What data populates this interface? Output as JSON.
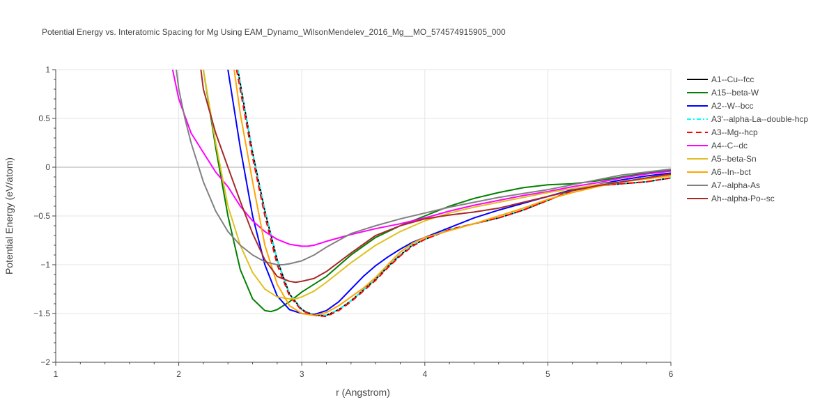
{
  "chart_data": {
    "type": "line",
    "title": "Potential Energy vs. Interatomic Spacing for Mg Using EAM_Dynamo_WilsonMendelev_2016_Mg__MO_574574915905_000",
    "xlabel": "r (Angstrom)",
    "ylabel": "Potential Energy (eV/atom)",
    "xlim": [
      1,
      6
    ],
    "ylim": [
      -2,
      1
    ],
    "xticks": [
      "1",
      "2",
      "3",
      "4",
      "5",
      "6"
    ],
    "yticks": [
      "1",
      "0.5",
      "0",
      "−0.5",
      "−1",
      "−1.5",
      "−2"
    ],
    "grid": true,
    "legend_position": "top-right",
    "series": [
      {
        "name": "A1--Cu--fcc",
        "color": "#000000",
        "dash": "solid",
        "x": [
          2.48,
          2.55,
          2.6,
          2.7,
          2.8,
          2.9,
          3.0,
          3.1,
          3.2,
          3.3,
          3.4,
          3.5,
          3.6,
          3.7,
          3.8,
          3.9,
          4.0,
          4.2,
          4.4,
          4.6,
          4.8,
          5.0,
          5.2,
          5.4,
          5.6,
          5.8,
          6.0
        ],
        "y": [
          1.0,
          0.5,
          0.15,
          -0.45,
          -0.95,
          -1.3,
          -1.46,
          -1.52,
          -1.52,
          -1.46,
          -1.37,
          -1.26,
          -1.15,
          -1.02,
          -0.9,
          -0.8,
          -0.74,
          -0.64,
          -0.58,
          -0.52,
          -0.44,
          -0.34,
          -0.24,
          -0.19,
          -0.17,
          -0.15,
          -0.11
        ]
      },
      {
        "name": "A15--beta-W",
        "color": "#008000",
        "dash": "solid",
        "x": [
          2.2,
          2.3,
          2.4,
          2.5,
          2.6,
          2.7,
          2.75,
          2.8,
          2.9,
          3.0,
          3.2,
          3.4,
          3.6,
          3.8,
          4.0,
          4.2,
          4.4,
          4.6,
          4.8,
          5.0,
          5.2,
          5.4,
          5.6,
          5.8,
          6.0
        ],
        "y": [
          1.0,
          0.2,
          -0.5,
          -1.05,
          -1.35,
          -1.47,
          -1.48,
          -1.46,
          -1.38,
          -1.28,
          -1.12,
          -0.9,
          -0.72,
          -0.6,
          -0.5,
          -0.4,
          -0.32,
          -0.26,
          -0.21,
          -0.18,
          -0.17,
          -0.14,
          -0.1,
          -0.06,
          -0.03
        ]
      },
      {
        "name": "A2--W--bcc",
        "color": "#0000ff",
        "dash": "solid",
        "x": [
          2.4,
          2.5,
          2.6,
          2.7,
          2.8,
          2.9,
          3.0,
          3.1,
          3.2,
          3.3,
          3.4,
          3.5,
          3.6,
          3.7,
          3.8,
          3.9,
          4.0,
          4.2,
          4.4,
          4.6,
          4.8,
          5.0,
          5.2,
          5.4,
          5.6,
          5.8,
          6.0
        ],
        "y": [
          1.0,
          0.2,
          -0.5,
          -1.0,
          -1.32,
          -1.46,
          -1.5,
          -1.51,
          -1.47,
          -1.38,
          -1.25,
          -1.12,
          -1.01,
          -0.92,
          -0.84,
          -0.77,
          -0.72,
          -0.62,
          -0.52,
          -0.44,
          -0.37,
          -0.3,
          -0.23,
          -0.18,
          -0.13,
          -0.09,
          -0.06
        ]
      },
      {
        "name": "A3'--alpha-La--double-hcp",
        "color": "#00ffff",
        "dash": "6 3 2 3",
        "x": [
          2.48,
          2.55,
          2.6,
          2.7,
          2.8,
          2.9,
          3.0,
          3.1,
          3.2,
          3.3,
          3.4,
          3.5,
          3.6,
          3.7,
          3.8,
          3.9,
          4.0,
          4.2,
          4.4,
          4.6,
          4.8,
          5.0,
          5.2,
          5.4,
          5.6,
          5.8,
          6.0
        ],
        "y": [
          1.0,
          0.5,
          0.15,
          -0.45,
          -0.95,
          -1.3,
          -1.46,
          -1.52,
          -1.52,
          -1.46,
          -1.37,
          -1.26,
          -1.15,
          -1.02,
          -0.9,
          -0.8,
          -0.74,
          -0.64,
          -0.58,
          -0.52,
          -0.44,
          -0.34,
          -0.24,
          -0.19,
          -0.17,
          -0.15,
          -0.11
        ]
      },
      {
        "name": "A3--Mg--hcp",
        "color": "#ff0000",
        "dash": "8 5",
        "x": [
          2.47,
          2.55,
          2.6,
          2.7,
          2.8,
          2.9,
          3.0,
          3.1,
          3.2,
          3.3,
          3.4,
          3.5,
          3.6,
          3.7,
          3.8,
          3.9,
          4.0,
          4.2,
          4.4,
          4.6,
          4.8,
          5.0,
          5.2,
          5.4,
          5.6,
          5.8,
          6.0
        ],
        "y": [
          1.0,
          0.45,
          0.1,
          -0.5,
          -1.0,
          -1.32,
          -1.47,
          -1.52,
          -1.53,
          -1.47,
          -1.38,
          -1.27,
          -1.16,
          -1.03,
          -0.91,
          -0.81,
          -0.74,
          -0.64,
          -0.58,
          -0.52,
          -0.44,
          -0.34,
          -0.24,
          -0.19,
          -0.17,
          -0.15,
          -0.11
        ]
      },
      {
        "name": "A4--C--dc",
        "color": "#ff00ff",
        "dash": "solid",
        "x": [
          1.95,
          2.0,
          2.1,
          2.2,
          2.3,
          2.4,
          2.5,
          2.6,
          2.7,
          2.8,
          2.9,
          3.0,
          3.05,
          3.1,
          3.2,
          3.4,
          3.6,
          3.8,
          4.0,
          4.2,
          4.4,
          4.6,
          4.8,
          5.0,
          5.2,
          5.4,
          5.6,
          5.8,
          6.0
        ],
        "y": [
          1.0,
          0.7,
          0.35,
          0.15,
          -0.05,
          -0.2,
          -0.4,
          -0.55,
          -0.66,
          -0.74,
          -0.79,
          -0.81,
          -0.81,
          -0.8,
          -0.76,
          -0.69,
          -0.63,
          -0.58,
          -0.52,
          -0.45,
          -0.39,
          -0.34,
          -0.29,
          -0.25,
          -0.2,
          -0.16,
          -0.11,
          -0.07,
          -0.04
        ]
      },
      {
        "name": "A5--beta-Sn",
        "color": "#e0c020",
        "dash": "solid",
        "x": [
          2.2,
          2.3,
          2.4,
          2.5,
          2.6,
          2.7,
          2.8,
          2.9,
          2.95,
          3.0,
          3.1,
          3.2,
          3.4,
          3.6,
          3.8,
          4.0,
          4.2,
          4.4,
          4.6,
          4.8,
          5.0,
          5.2,
          5.4,
          5.6,
          5.8,
          6.0
        ],
        "y": [
          1.0,
          0.25,
          -0.4,
          -0.8,
          -1.08,
          -1.25,
          -1.33,
          -1.35,
          -1.35,
          -1.33,
          -1.27,
          -1.18,
          -0.98,
          -0.8,
          -0.66,
          -0.55,
          -0.47,
          -0.41,
          -0.36,
          -0.31,
          -0.26,
          -0.22,
          -0.18,
          -0.15,
          -0.12,
          -0.09
        ]
      },
      {
        "name": "A6--In--bct",
        "color": "#ffa500",
        "dash": "solid",
        "x": [
          2.45,
          2.5,
          2.6,
          2.7,
          2.8,
          2.9,
          3.0,
          3.1,
          3.2,
          3.3,
          3.4,
          3.5,
          3.6,
          3.7,
          3.8,
          3.9,
          4.0,
          4.2,
          4.4,
          4.6,
          4.8,
          5.0,
          5.2,
          5.4,
          5.6,
          5.8,
          6.0
        ],
        "y": [
          1.0,
          0.55,
          -0.15,
          -0.8,
          -1.2,
          -1.42,
          -1.5,
          -1.52,
          -1.49,
          -1.42,
          -1.33,
          -1.24,
          -1.13,
          -1.0,
          -0.87,
          -0.78,
          -0.72,
          -0.65,
          -0.58,
          -0.5,
          -0.42,
          -0.33,
          -0.26,
          -0.2,
          -0.15,
          -0.12,
          -0.08
        ]
      },
      {
        "name": "A7--alpha-As",
        "color": "#808080",
        "dash": "solid",
        "x": [
          1.98,
          2.0,
          2.05,
          2.1,
          2.15,
          2.2,
          2.3,
          2.4,
          2.5,
          2.6,
          2.7,
          2.8,
          2.85,
          2.9,
          3.0,
          3.1,
          3.2,
          3.3,
          3.4,
          3.6,
          3.8,
          4.0,
          4.2,
          4.4,
          4.6,
          4.8,
          5.0,
          5.2,
          5.4,
          5.6,
          5.8,
          6.0
        ],
        "y": [
          1.0,
          0.8,
          0.5,
          0.25,
          0.05,
          -0.15,
          -0.45,
          -0.66,
          -0.8,
          -0.9,
          -0.97,
          -1.0,
          -1.0,
          -0.99,
          -0.96,
          -0.9,
          -0.82,
          -0.75,
          -0.68,
          -0.6,
          -0.53,
          -0.47,
          -0.41,
          -0.36,
          -0.31,
          -0.27,
          -0.23,
          -0.18,
          -0.13,
          -0.08,
          -0.05,
          -0.02
        ]
      },
      {
        "name": "Ah--alpha-Po--sc",
        "color": "#a52a2a",
        "dash": "solid",
        "x": [
          2.18,
          2.2,
          2.3,
          2.4,
          2.5,
          2.6,
          2.7,
          2.8,
          2.9,
          2.95,
          3.0,
          3.1,
          3.2,
          3.4,
          3.6,
          3.8,
          4.0,
          4.2,
          4.4,
          4.6,
          4.8,
          5.0,
          5.2,
          5.4,
          5.6,
          5.8,
          6.0
        ],
        "y": [
          1.0,
          0.8,
          0.35,
          0.0,
          -0.35,
          -0.68,
          -0.95,
          -1.12,
          -1.17,
          -1.18,
          -1.17,
          -1.14,
          -1.07,
          -0.88,
          -0.7,
          -0.6,
          -0.53,
          -0.49,
          -0.46,
          -0.42,
          -0.36,
          -0.3,
          -0.24,
          -0.19,
          -0.15,
          -0.11,
          -0.07
        ]
      }
    ]
  }
}
